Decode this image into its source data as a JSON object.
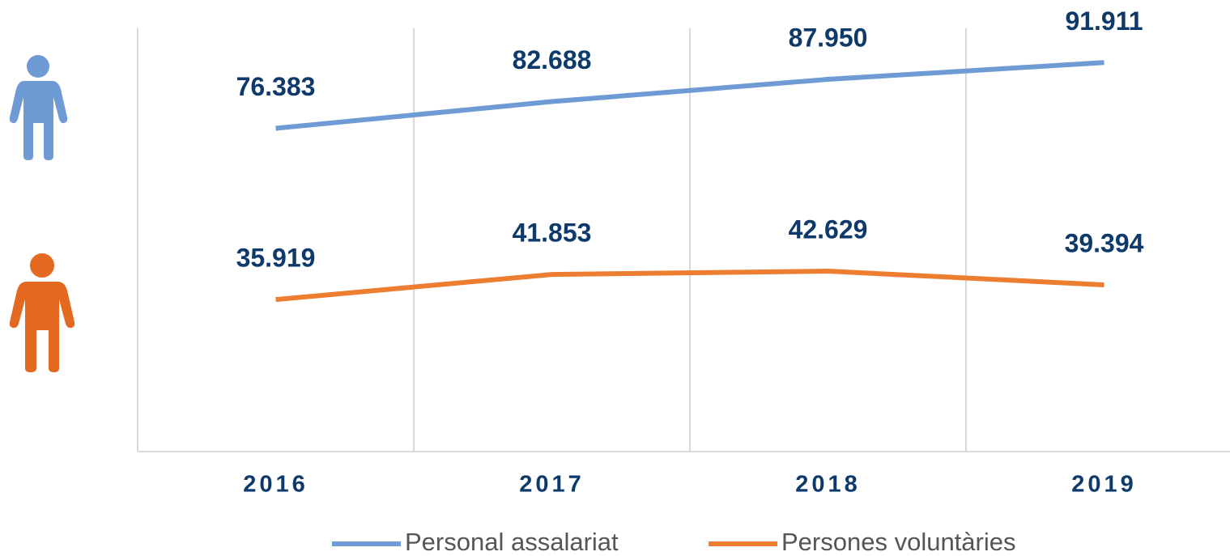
{
  "chart_data": {
    "type": "line",
    "categories": [
      "2016",
      "2017",
      "2018",
      "2019"
    ],
    "ylim": [
      0,
      100000
    ],
    "series": [
      {
        "name": "Personal assalariat",
        "color": "#6f9bd4",
        "values": [
          76383,
          82688,
          87950,
          91911
        ],
        "value_labels": [
          "76.383",
          "82.688",
          "87.950",
          "91.911"
        ]
      },
      {
        "name": "Persones voluntàries",
        "color": "#ed7d31",
        "values": [
          35919,
          41853,
          42629,
          39394
        ],
        "value_labels": [
          "35.919",
          "41.853",
          "42.629",
          "39.394"
        ]
      }
    ],
    "label_color": "#0d3a6b"
  }
}
